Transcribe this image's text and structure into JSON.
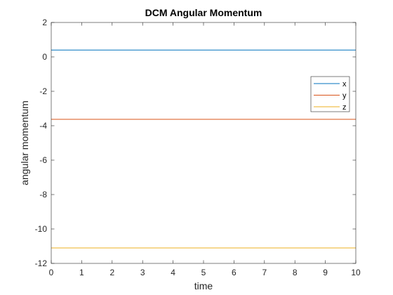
{
  "chart_data": {
    "type": "line",
    "title": "DCM Angular Momentum",
    "xlabel": "time",
    "ylabel": "angular momentum",
    "xlim": [
      0,
      10
    ],
    "ylim": [
      -12,
      2
    ],
    "xticks": [
      "0",
      "1",
      "2",
      "3",
      "4",
      "5",
      "6",
      "7",
      "8",
      "9",
      "10"
    ],
    "yticks": [
      "2",
      "0",
      "-2",
      "-4",
      "-6",
      "-8",
      "-10",
      "-12"
    ],
    "grid": false,
    "legend_position": "right",
    "series": [
      {
        "name": "x",
        "color": "#0072BD",
        "x": [
          0,
          10
        ],
        "y": [
          0.4,
          0.4
        ]
      },
      {
        "name": "y",
        "color": "#D95319",
        "x": [
          0,
          10
        ],
        "y": [
          -3.63,
          -3.63
        ]
      },
      {
        "name": "z",
        "color": "#EDB120",
        "x": [
          0,
          10
        ],
        "y": [
          -11.1,
          -11.1
        ]
      }
    ]
  }
}
